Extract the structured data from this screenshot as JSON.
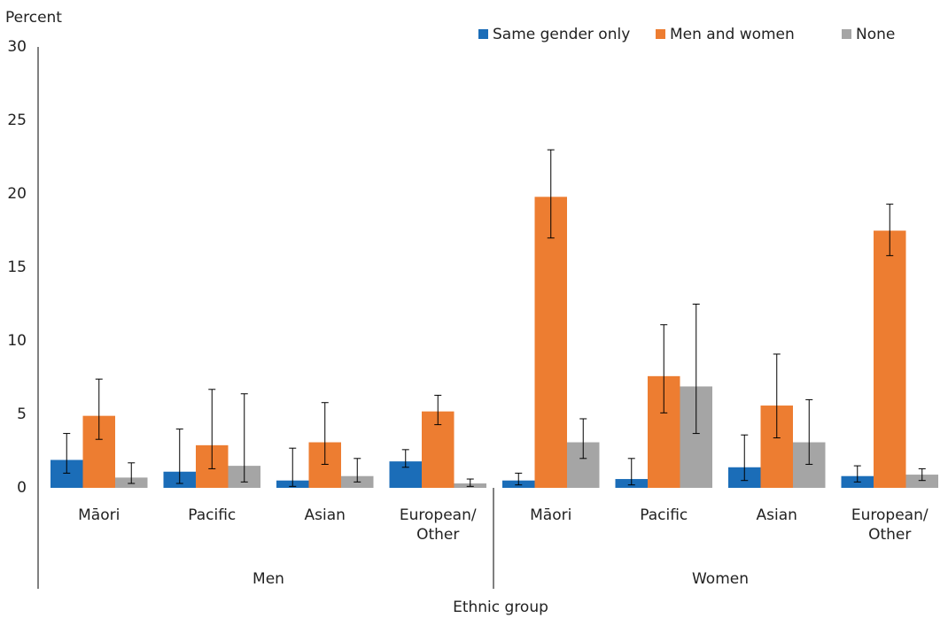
{
  "chart_data": {
    "type": "bar",
    "y_label": "Percent",
    "x_label": "Ethnic group",
    "category_groups": [
      {
        "name": "Men",
        "categories": [
          "Māori",
          "Pacific",
          "Asian",
          "European/ Other"
        ]
      },
      {
        "name": "Women",
        "categories": [
          "Māori",
          "Pacific",
          "Asian",
          "European/ Other"
        ]
      }
    ],
    "series": [
      {
        "name": "Same gender only",
        "color": "#1b6db8",
        "values": [
          1.9,
          1.1,
          0.5,
          1.8,
          0.5,
          0.6,
          1.4,
          0.8
        ],
        "lower": [
          1.0,
          0.3,
          0.1,
          1.4,
          0.2,
          0.2,
          0.5,
          0.4
        ],
        "upper": [
          3.7,
          4.0,
          2.7,
          2.6,
          1.0,
          2.0,
          3.6,
          1.5
        ]
      },
      {
        "name": "Men and women",
        "color": "#ed7d31",
        "values": [
          4.9,
          2.9,
          3.1,
          5.2,
          19.8,
          7.6,
          5.6,
          17.5
        ],
        "lower": [
          3.3,
          1.3,
          1.6,
          4.3,
          17.0,
          5.1,
          3.4,
          15.8
        ],
        "upper": [
          7.4,
          6.7,
          5.8,
          6.3,
          23.0,
          11.1,
          9.1,
          19.3
        ]
      },
      {
        "name": "None",
        "color": "#a5a5a5",
        "values": [
          0.7,
          1.5,
          0.8,
          0.3,
          3.1,
          6.9,
          3.1,
          0.9
        ],
        "lower": [
          0.3,
          0.4,
          0.4,
          0.1,
          2.0,
          3.7,
          1.6,
          0.5
        ],
        "upper": [
          1.7,
          6.4,
          2.0,
          0.6,
          4.7,
          12.5,
          6.0,
          1.3
        ]
      }
    ],
    "ylim": [
      0,
      30
    ],
    "yticks": [
      0,
      5,
      10,
      15,
      20,
      25,
      30
    ],
    "grid": false,
    "legend": "top"
  }
}
